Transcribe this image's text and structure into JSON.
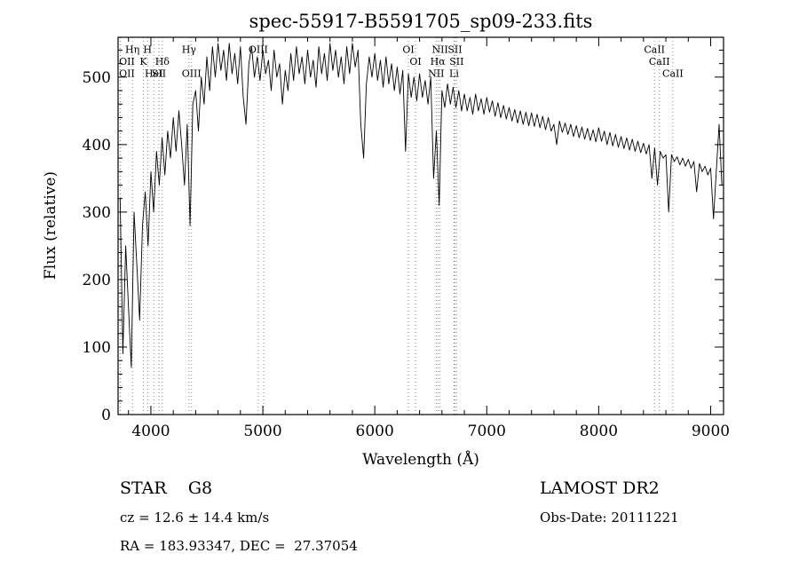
{
  "title": "spec-55917-B5591705_sp09-233.fits",
  "annotations": {
    "class_label": "STAR    G8",
    "survey": "LAMOST DR2",
    "cz": "cz = 12.6 ± 14.4 km/s",
    "obs_date": "Obs-Date: 20111221",
    "coords": "RA = 183.93347, DEC =  27.37054"
  },
  "chart_data": {
    "type": "line",
    "title": "spec-55917-B5591705_sp09-233.fits",
    "xlabel": "Wavelength (Å)",
    "ylabel": "Flux (relative)",
    "xlim": [
      3707,
      9115
    ],
    "ylim": [
      0,
      559
    ],
    "xticks": [
      4000,
      5000,
      6000,
      7000,
      8000,
      9000
    ],
    "yticks": [
      0,
      100,
      200,
      300,
      400,
      500
    ],
    "x_minor_step": 200,
    "y_minor_step": 20,
    "grid": false,
    "legend": "none",
    "line_color": "#000000",
    "marker_line_color": "#8a8a8a",
    "x_start": 3700,
    "x_step": 25,
    "series_label": "flux",
    "flux": [
      180,
      320,
      90,
      250,
      160,
      70,
      300,
      220,
      140,
      280,
      330,
      250,
      360,
      300,
      390,
      340,
      410,
      355,
      420,
      380,
      440,
      390,
      450,
      400,
      340,
      430,
      280,
      460,
      480,
      420,
      500,
      460,
      530,
      480,
      545,
      500,
      550,
      510,
      540,
      495,
      550,
      505,
      535,
      490,
      545,
      470,
      430,
      520,
      545,
      500,
      530,
      495,
      540,
      505,
      525,
      480,
      540,
      500,
      520,
      460,
      510,
      480,
      535,
      495,
      545,
      505,
      530,
      490,
      540,
      500,
      525,
      485,
      545,
      505,
      535,
      495,
      550,
      510,
      540,
      500,
      530,
      490,
      545,
      505,
      550,
      515,
      540,
      430,
      380,
      490,
      530,
      500,
      535,
      495,
      525,
      485,
      530,
      490,
      520,
      480,
      515,
      475,
      510,
      390,
      505,
      470,
      500,
      465,
      505,
      470,
      495,
      460,
      500,
      350,
      420,
      310,
      480,
      455,
      490,
      460,
      485,
      455,
      480,
      450,
      475,
      450,
      470,
      445,
      475,
      450,
      468,
      445,
      470,
      448,
      465,
      442,
      462,
      440,
      458,
      438,
      455,
      435,
      452,
      432,
      450,
      430,
      448,
      428,
      447,
      427,
      445,
      425,
      442,
      422,
      440,
      420,
      430,
      400,
      435,
      418,
      432,
      415,
      430,
      412,
      428,
      410,
      426,
      408,
      424,
      406,
      422,
      404,
      425,
      405,
      420,
      400,
      418,
      398,
      415,
      396,
      412,
      394,
      410,
      392,
      408,
      390,
      405,
      388,
      402,
      386,
      400,
      350,
      395,
      340,
      390,
      380,
      385,
      300,
      385,
      375,
      382,
      370,
      380,
      368,
      378,
      365,
      375,
      330,
      372,
      360,
      368,
      355,
      365,
      290,
      360,
      430,
      340
    ],
    "spectral_lines": [
      {
        "wavelength": 3727,
        "label": "OII",
        "row": 2
      },
      {
        "wavelength": 3729,
        "label": "OII",
        "row": 3
      },
      {
        "wavelength": 3835,
        "label": "Hη",
        "row": 1
      },
      {
        "wavelength": 3933,
        "label": "K",
        "row": 2
      },
      {
        "wavelength": 3970,
        "label": "H",
        "row": 1
      },
      {
        "wavelength": 4026,
        "label": "HeI",
        "row": 3
      },
      {
        "wavelength": 4072,
        "label": "SII",
        "row": 3
      },
      {
        "wavelength": 4102,
        "label": "Hδ",
        "row": 2
      },
      {
        "wavelength": 4340,
        "label": "Hγ",
        "row": 1
      },
      {
        "wavelength": 4363,
        "label": "OIII",
        "row": 3
      },
      {
        "wavelength": 4959,
        "label": "OIII",
        "row": 1
      },
      {
        "wavelength": 5007,
        "label": "",
        "row": 0
      },
      {
        "wavelength": 6300,
        "label": "OI",
        "row": 1
      },
      {
        "wavelength": 6364,
        "label": "OI",
        "row": 2
      },
      {
        "wavelength": 6548,
        "label": "NII",
        "row": 3
      },
      {
        "wavelength": 6563,
        "label": "Hα",
        "row": 2
      },
      {
        "wavelength": 6583,
        "label": "NII",
        "row": 1
      },
      {
        "wavelength": 6708,
        "label": "Li",
        "row": 3
      },
      {
        "wavelength": 6716,
        "label": "SII",
        "row": 1
      },
      {
        "wavelength": 6731,
        "label": "SII",
        "row": 2
      },
      {
        "wavelength": 8498,
        "label": "CaII",
        "row": 1
      },
      {
        "wavelength": 8542,
        "label": "CaII",
        "row": 2
      },
      {
        "wavelength": 8662,
        "label": "CaII",
        "row": 3
      }
    ]
  }
}
